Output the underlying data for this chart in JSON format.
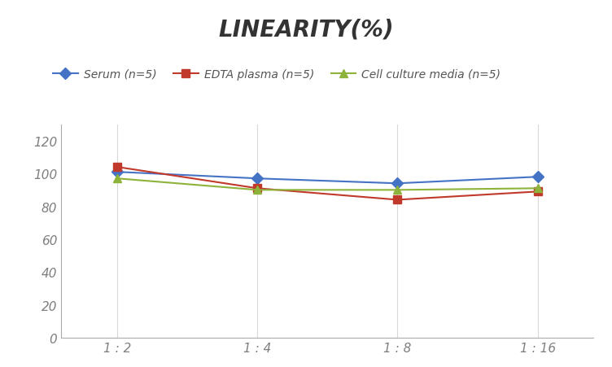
{
  "title": "LINEARITY(%)",
  "x_labels": [
    "1 : 2",
    "1 : 4",
    "1 : 8",
    "1 : 16"
  ],
  "x_positions": [
    0,
    1,
    2,
    3
  ],
  "series": [
    {
      "label": "Serum (n=5)",
      "values": [
        101,
        97,
        94,
        98
      ],
      "color": "#4472C4",
      "marker": "D",
      "marker_size": 7,
      "linewidth": 1.5
    },
    {
      "label": "EDTA plasma (n=5)",
      "values": [
        104,
        91,
        84,
        89
      ],
      "color": "#C0392B",
      "marker": "s",
      "marker_size": 7,
      "linewidth": 1.5
    },
    {
      "label": "Cell culture media (n=5)",
      "values": [
        97,
        90,
        90,
        91
      ],
      "color": "#8DB33A",
      "marker": "^",
      "marker_size": 7,
      "linewidth": 1.5
    }
  ],
  "ylim": [
    0,
    130
  ],
  "yticks": [
    0,
    20,
    40,
    60,
    80,
    100,
    120
  ],
  "grid_color": "#D9D9D9",
  "background_color": "#FFFFFF",
  "title_fontsize": 20,
  "legend_fontsize": 10,
  "tick_fontsize": 11,
  "tick_color": "#7F7F7F"
}
